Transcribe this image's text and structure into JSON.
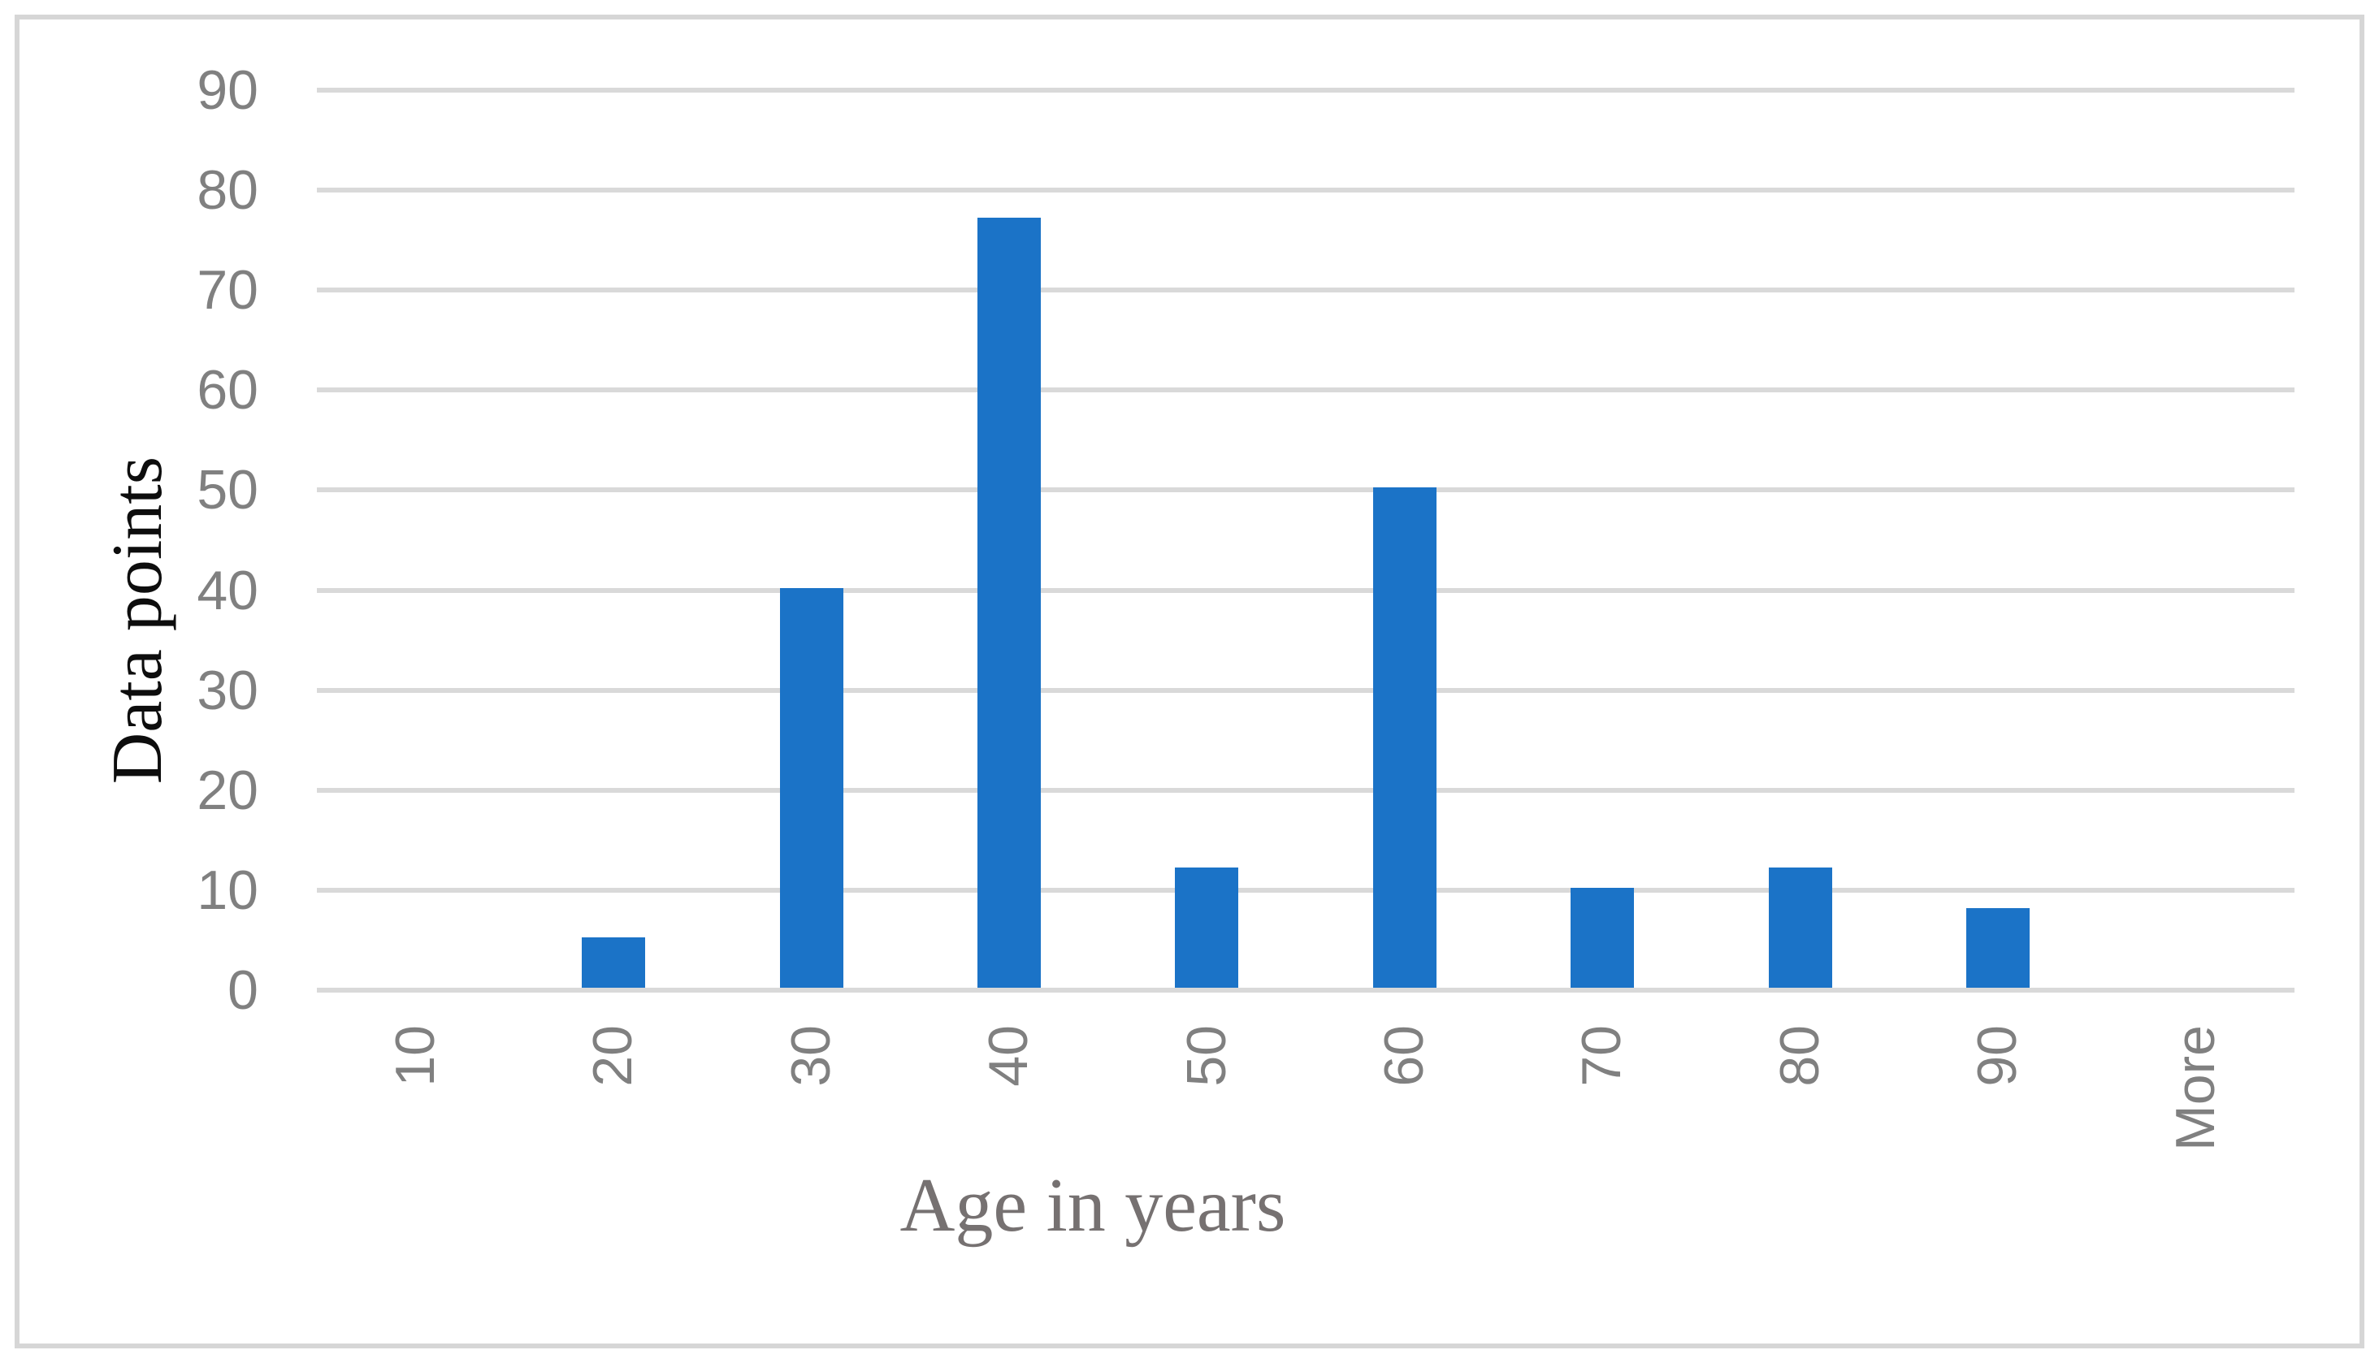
{
  "chart_data": {
    "type": "bar",
    "title": "",
    "xlabel": "Age in years",
    "ylabel": "Data points",
    "categories": [
      "10",
      "20",
      "30",
      "40",
      "50",
      "60",
      "70",
      "80",
      "90",
      "More"
    ],
    "values": [
      0,
      5,
      40,
      77,
      12,
      50,
      10,
      12,
      8,
      0
    ],
    "y_ticks": [
      0,
      10,
      20,
      30,
      40,
      50,
      60,
      70,
      80,
      90
    ],
    "ylim": [
      0,
      90
    ],
    "grid": "horizontal-gridlines",
    "legend_position": "none",
    "colors": {
      "bar_fill": "#1b73c7",
      "gridline": "#d9d9d9",
      "frame_border": "#d6d6d6",
      "tick_label": "#808080",
      "x_axis_title": "#767171",
      "y_axis_title": "#0d0d0d",
      "background": "#ffffff"
    }
  }
}
